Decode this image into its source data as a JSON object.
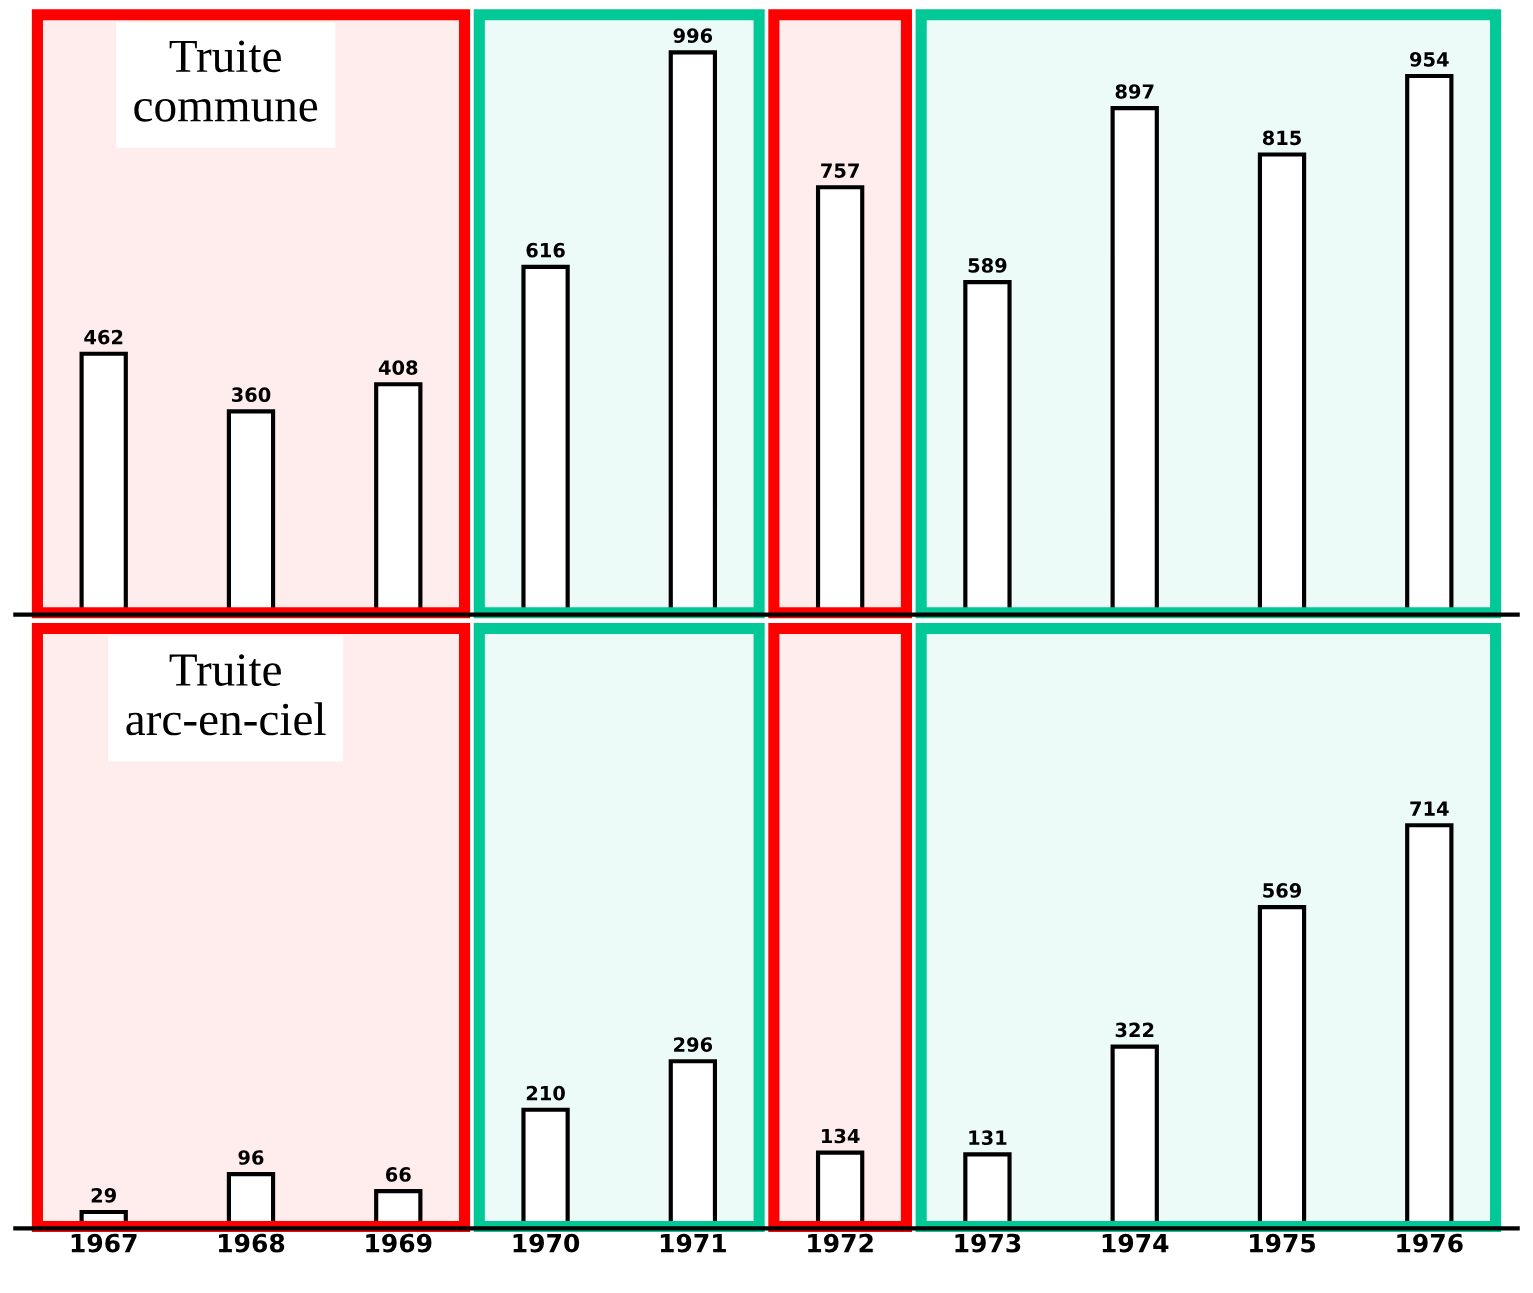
{
  "chart_data": [
    {
      "type": "bar",
      "title": "Truite\ncommune",
      "categories": [
        "1967",
        "1968",
        "1969",
        "1970",
        "1971",
        "1972",
        "1973",
        "1974",
        "1975",
        "1976"
      ],
      "values": [
        462,
        360,
        408,
        616,
        996,
        757,
        589,
        897,
        815,
        954
      ],
      "color": "#ffffff",
      "data_labels": true,
      "tick_labels": false,
      "grid": false,
      "bands": [
        {
          "axis": "x",
          "from": "1967",
          "to": "1969",
          "color": "#ff0000"
        },
        {
          "axis": "x",
          "from": "1970",
          "to": "1971",
          "color": "#00c896"
        },
        {
          "axis": "x",
          "from": "1972",
          "to": "1972",
          "color": "#ff0000"
        },
        {
          "axis": "x",
          "from": "1973",
          "to": "1976",
          "color": "#00c896"
        }
      ]
    },
    {
      "type": "bar",
      "title": "Truite\narc-en-ciel",
      "categories": [
        "1967",
        "1968",
        "1969",
        "1970",
        "1971",
        "1972",
        "1973",
        "1974",
        "1975",
        "1976"
      ],
      "values": [
        29,
        96,
        66,
        210,
        296,
        134,
        131,
        322,
        569,
        714
      ],
      "color": "#ffffff",
      "data_labels": true,
      "tick_labels": "x",
      "grid": false,
      "bands": [
        {
          "axis": "x",
          "from": "1967",
          "to": "1969",
          "color": "#ff0000"
        },
        {
          "axis": "x",
          "from": "1970",
          "to": "1971",
          "color": "#00c896"
        },
        {
          "axis": "x",
          "from": "1972",
          "to": "1972",
          "color": "#ff0000"
        },
        {
          "axis": "x",
          "from": "1973",
          "to": "1976",
          "color": "#00c896"
        }
      ]
    }
  ]
}
